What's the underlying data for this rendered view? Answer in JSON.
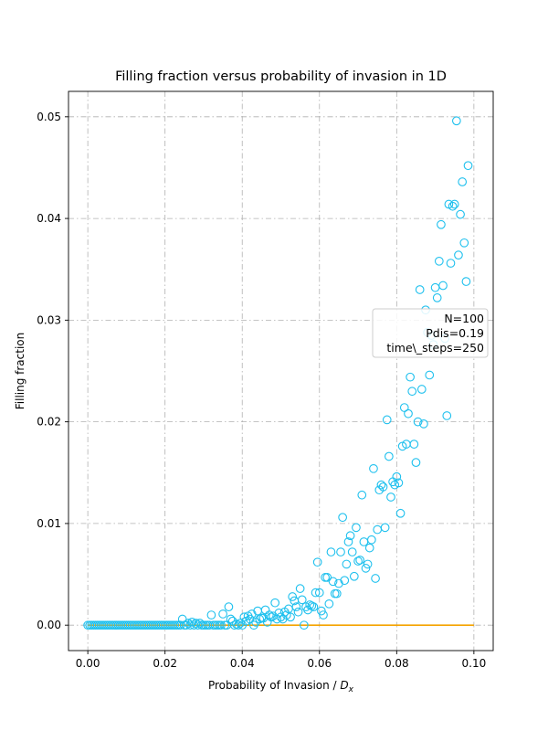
{
  "chart_data": {
    "type": "scatter",
    "title": "Filling fraction versus probability of invasion in 1D",
    "xlabel_main": "Probability of Invasion / ",
    "xlabel_math": "D",
    "xlabel_sub": "x",
    "ylabel": "Filling fraction",
    "xlim": [
      -0.005,
      0.105
    ],
    "ylim": [
      -0.0025,
      0.0525
    ],
    "xticks": [
      0.0,
      0.02,
      0.04,
      0.06,
      0.08,
      0.1
    ],
    "xtick_labels": [
      "0.00",
      "0.02",
      "0.04",
      "0.06",
      "0.08",
      "0.10"
    ],
    "yticks": [
      0.0,
      0.01,
      0.02,
      0.03,
      0.04,
      0.05
    ],
    "ytick_labels": [
      "0.00",
      "0.01",
      "0.02",
      "0.03",
      "0.04",
      "0.05"
    ],
    "grid": true,
    "legend_placement": "center-right",
    "annotation_lines": [
      "N=100",
      "Pdis=0.19",
      "time\\_steps=250"
    ],
    "line": {
      "x": [
        0.0,
        0.1
      ],
      "y": [
        0.0,
        0.0
      ],
      "color": "#f5a300"
    },
    "scatter_color": "#1ec0ee",
    "points": [
      [
        0.0,
        0.0
      ],
      [
        0.0005,
        0.0
      ],
      [
        0.001,
        0.0
      ],
      [
        0.0015,
        0.0
      ],
      [
        0.002,
        0.0
      ],
      [
        0.0025,
        0.0
      ],
      [
        0.003,
        0.0
      ],
      [
        0.0035,
        0.0
      ],
      [
        0.004,
        0.0
      ],
      [
        0.0045,
        0.0
      ],
      [
        0.005,
        0.0
      ],
      [
        0.0055,
        0.0
      ],
      [
        0.006,
        0.0
      ],
      [
        0.0065,
        0.0
      ],
      [
        0.007,
        0.0
      ],
      [
        0.0075,
        0.0
      ],
      [
        0.008,
        0.0
      ],
      [
        0.0085,
        0.0
      ],
      [
        0.009,
        0.0
      ],
      [
        0.0095,
        0.0
      ],
      [
        0.01,
        0.0
      ],
      [
        0.0105,
        0.0
      ],
      [
        0.011,
        0.0
      ],
      [
        0.0115,
        0.0
      ],
      [
        0.012,
        0.0
      ],
      [
        0.0125,
        0.0
      ],
      [
        0.013,
        0.0
      ],
      [
        0.0135,
        0.0
      ],
      [
        0.014,
        0.0
      ],
      [
        0.0145,
        0.0
      ],
      [
        0.015,
        0.0
      ],
      [
        0.0155,
        0.0
      ],
      [
        0.016,
        0.0
      ],
      [
        0.0165,
        0.0
      ],
      [
        0.017,
        0.0
      ],
      [
        0.0175,
        0.0
      ],
      [
        0.018,
        0.0
      ],
      [
        0.0185,
        0.0
      ],
      [
        0.019,
        0.0
      ],
      [
        0.0195,
        0.0
      ],
      [
        0.02,
        0.0
      ],
      [
        0.0205,
        0.0
      ],
      [
        0.021,
        0.0
      ],
      [
        0.0215,
        0.0
      ],
      [
        0.022,
        0.0
      ],
      [
        0.0225,
        0.0
      ],
      [
        0.023,
        0.0
      ],
      [
        0.0235,
        0.0
      ],
      [
        0.024,
        0.0
      ],
      [
        0.0245,
        0.0006
      ],
      [
        0.025,
        0.0
      ],
      [
        0.0255,
        0.0
      ],
      [
        0.026,
        0.0002
      ],
      [
        0.0265,
        0.0
      ],
      [
        0.027,
        0.0003
      ],
      [
        0.0275,
        0.0
      ],
      [
        0.028,
        0.0002
      ],
      [
        0.0285,
        0.0
      ],
      [
        0.029,
        0.0002
      ],
      [
        0.0295,
        0.0
      ],
      [
        0.03,
        0.0
      ],
      [
        0.0305,
        0.0
      ],
      [
        0.031,
        0.0
      ],
      [
        0.0315,
        0.0
      ],
      [
        0.032,
        0.001
      ],
      [
        0.0325,
        0.0
      ],
      [
        0.033,
        0.0
      ],
      [
        0.0335,
        0.0
      ],
      [
        0.034,
        0.0
      ],
      [
        0.0345,
        0.0
      ],
      [
        0.035,
        0.0011
      ],
      [
        0.0355,
        0.0
      ],
      [
        0.036,
        0.0
      ],
      [
        0.0365,
        0.0018
      ],
      [
        0.037,
        0.0006
      ],
      [
        0.0375,
        0.0004
      ],
      [
        0.038,
        0.0
      ],
      [
        0.0385,
        0.0001
      ],
      [
        0.039,
        0.0
      ],
      [
        0.0395,
        0.0002
      ],
      [
        0.04,
        0.0
      ],
      [
        0.0405,
        0.0008
      ],
      [
        0.041,
        0.0004
      ],
      [
        0.0415,
        0.0009
      ],
      [
        0.042,
        0.0006
      ],
      [
        0.0425,
        0.0011
      ],
      [
        0.043,
        0.0
      ],
      [
        0.0435,
        0.0003
      ],
      [
        0.044,
        0.0014
      ],
      [
        0.0445,
        0.0006
      ],
      [
        0.045,
        0.0007
      ],
      [
        0.0455,
        0.0007
      ],
      [
        0.046,
        0.0015
      ],
      [
        0.0465,
        0.0003
      ],
      [
        0.047,
        0.001
      ],
      [
        0.0475,
        0.0008
      ],
      [
        0.048,
        0.0009
      ],
      [
        0.0485,
        0.0022
      ],
      [
        0.049,
        0.0006
      ],
      [
        0.0495,
        0.0012
      ],
      [
        0.05,
        0.0008
      ],
      [
        0.0505,
        0.0006
      ],
      [
        0.051,
        0.0013
      ],
      [
        0.0515,
        0.001
      ],
      [
        0.052,
        0.0016
      ],
      [
        0.0525,
        0.0008
      ],
      [
        0.053,
        0.0028
      ],
      [
        0.0535,
        0.0024
      ],
      [
        0.054,
        0.0018
      ],
      [
        0.0545,
        0.0013
      ],
      [
        0.055,
        0.0036
      ],
      [
        0.0555,
        0.0025
      ],
      [
        0.056,
        0.0
      ],
      [
        0.0565,
        0.0018
      ],
      [
        0.057,
        0.0015
      ],
      [
        0.0575,
        0.002
      ],
      [
        0.058,
        0.0019
      ],
      [
        0.0585,
        0.0018
      ],
      [
        0.059,
        0.0032
      ],
      [
        0.0595,
        0.0062
      ],
      [
        0.06,
        0.0032
      ],
      [
        0.0605,
        0.0014
      ],
      [
        0.061,
        0.001
      ],
      [
        0.0615,
        0.0047
      ],
      [
        0.062,
        0.0047
      ],
      [
        0.0625,
        0.0021
      ],
      [
        0.063,
        0.0072
      ],
      [
        0.0635,
        0.0043
      ],
      [
        0.064,
        0.0031
      ],
      [
        0.0645,
        0.0031
      ],
      [
        0.065,
        0.0041
      ],
      [
        0.0655,
        0.0072
      ],
      [
        0.066,
        0.0106
      ],
      [
        0.0665,
        0.0044
      ],
      [
        0.067,
        0.006
      ],
      [
        0.0675,
        0.0082
      ],
      [
        0.068,
        0.0088
      ],
      [
        0.0685,
        0.0072
      ],
      [
        0.069,
        0.0048
      ],
      [
        0.0695,
        0.0096
      ],
      [
        0.07,
        0.0063
      ],
      [
        0.0705,
        0.0064
      ],
      [
        0.071,
        0.0128
      ],
      [
        0.0715,
        0.0082
      ],
      [
        0.072,
        0.0056
      ],
      [
        0.0725,
        0.006
      ],
      [
        0.073,
        0.0076
      ],
      [
        0.0735,
        0.0084
      ],
      [
        0.074,
        0.0154
      ],
      [
        0.0745,
        0.0046
      ],
      [
        0.075,
        0.0094
      ],
      [
        0.0755,
        0.0133
      ],
      [
        0.076,
        0.0138
      ],
      [
        0.0765,
        0.0136
      ],
      [
        0.077,
        0.0096
      ],
      [
        0.0775,
        0.0202
      ],
      [
        0.078,
        0.0166
      ],
      [
        0.0785,
        0.0126
      ],
      [
        0.079,
        0.0141
      ],
      [
        0.0795,
        0.0138
      ],
      [
        0.08,
        0.0146
      ],
      [
        0.0805,
        0.014
      ],
      [
        0.081,
        0.011
      ],
      [
        0.0815,
        0.0176
      ],
      [
        0.082,
        0.0214
      ],
      [
        0.0825,
        0.0178
      ],
      [
        0.083,
        0.0208
      ],
      [
        0.0835,
        0.0244
      ],
      [
        0.084,
        0.023
      ],
      [
        0.0845,
        0.0178
      ],
      [
        0.085,
        0.016
      ],
      [
        0.0855,
        0.02
      ],
      [
        0.086,
        0.033
      ],
      [
        0.0865,
        0.0232
      ],
      [
        0.087,
        0.0198
      ],
      [
        0.0875,
        0.031
      ],
      [
        0.088,
        0.0288
      ],
      [
        0.0885,
        0.0246
      ],
      [
        0.089,
        0.0285
      ],
      [
        0.0895,
        0.0276
      ],
      [
        0.09,
        0.0332
      ],
      [
        0.0905,
        0.0322
      ],
      [
        0.091,
        0.0358
      ],
      [
        0.0915,
        0.0394
      ],
      [
        0.092,
        0.0334
      ],
      [
        0.0925,
        0.0282
      ],
      [
        0.093,
        0.0206
      ],
      [
        0.0935,
        0.0414
      ],
      [
        0.094,
        0.0356
      ],
      [
        0.0945,
        0.0412
      ],
      [
        0.095,
        0.0414
      ],
      [
        0.0955,
        0.0496
      ],
      [
        0.096,
        0.0364
      ],
      [
        0.0965,
        0.0404
      ],
      [
        0.097,
        0.0436
      ],
      [
        0.0975,
        0.0376
      ],
      [
        0.098,
        0.0338
      ],
      [
        0.0985,
        0.0452
      ]
    ]
  }
}
